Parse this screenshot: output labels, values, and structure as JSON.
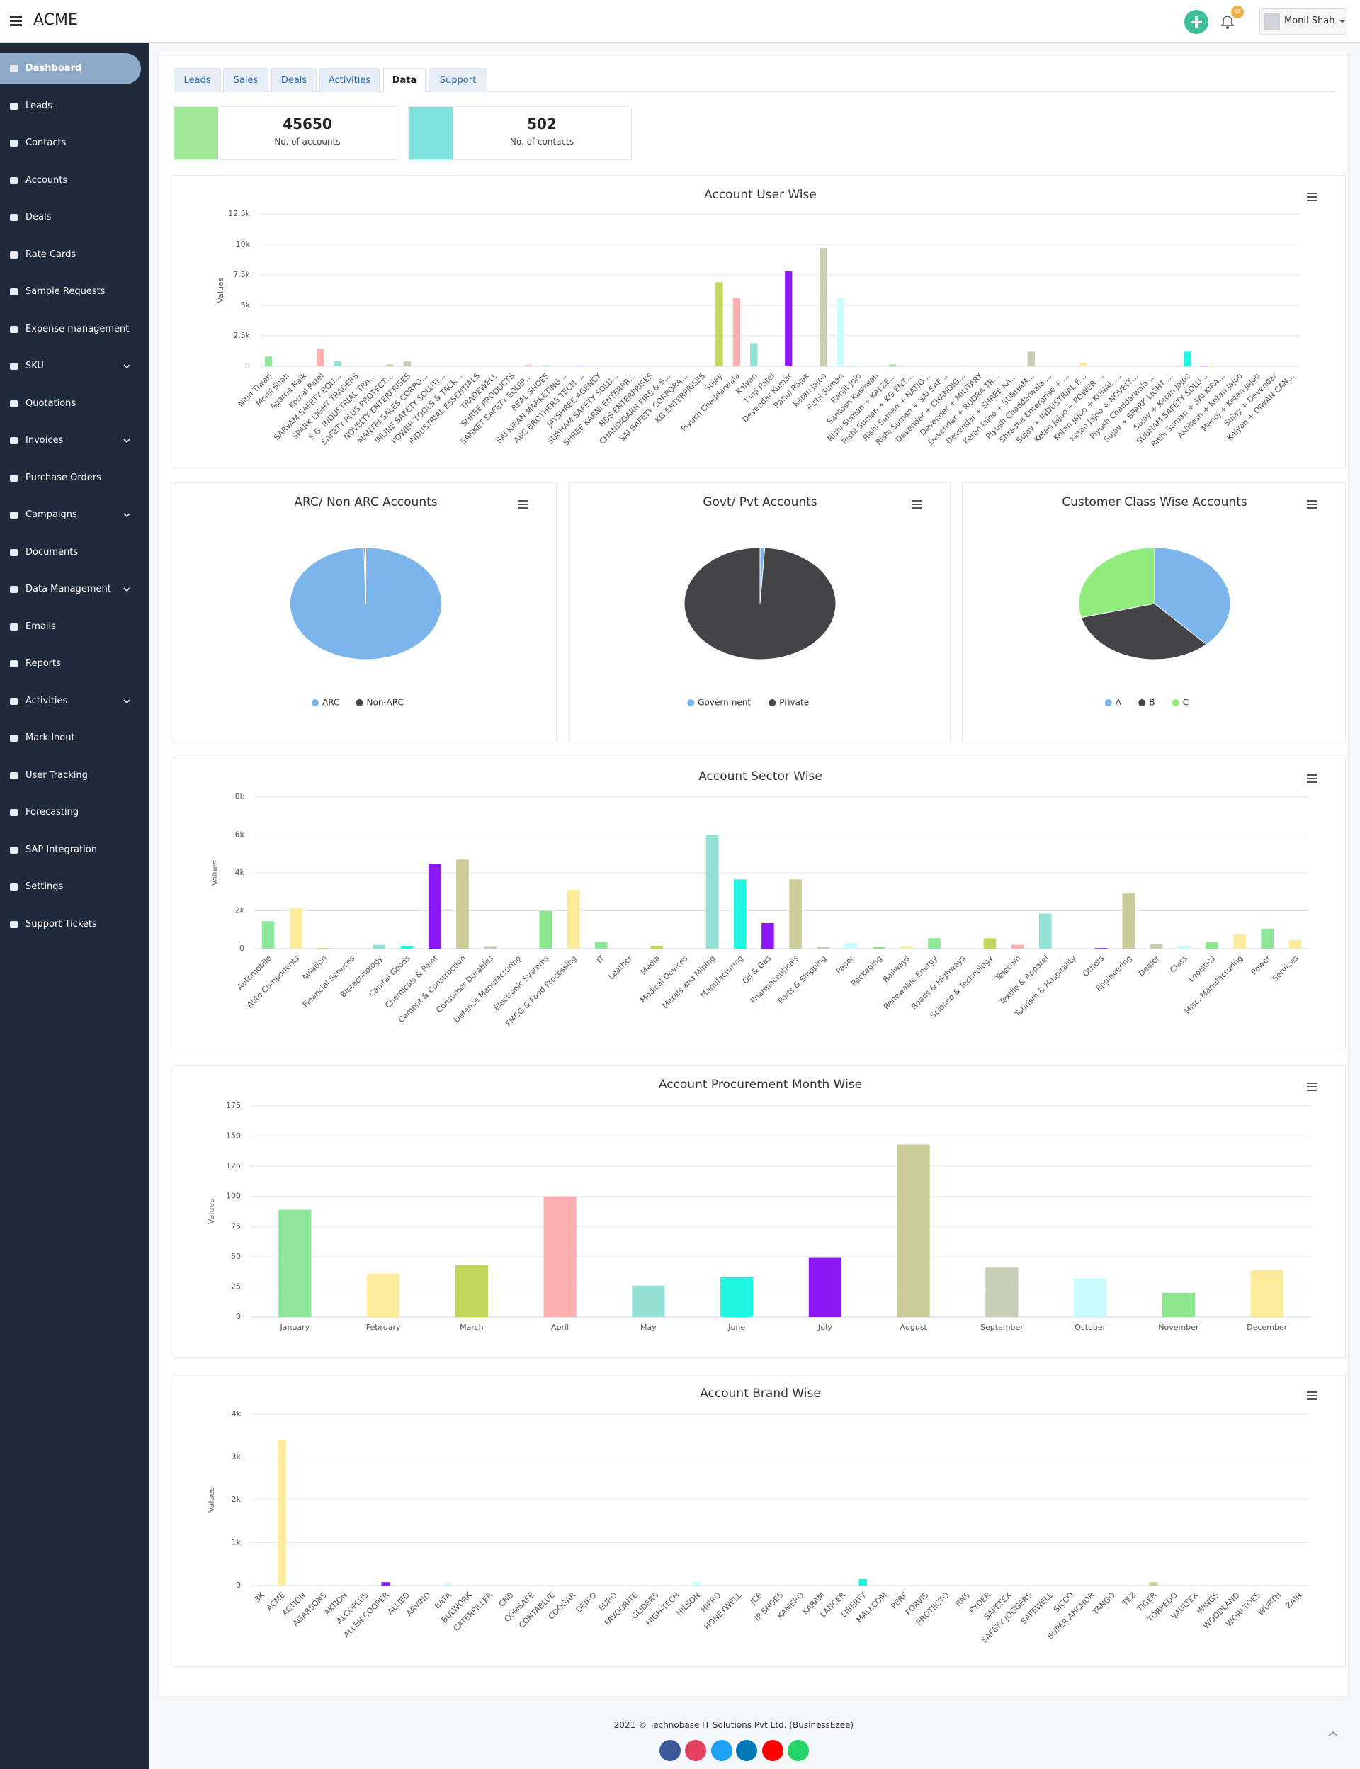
{
  "header": {
    "brand": "ACME",
    "notifications": "0",
    "user": "Monil Shah"
  },
  "sidebar": {
    "items": [
      {
        "label": "Dashboard",
        "active": true
      },
      {
        "label": "Leads"
      },
      {
        "label": "Contacts"
      },
      {
        "label": "Accounts"
      },
      {
        "label": "Deals"
      },
      {
        "label": "Rate Cards"
      },
      {
        "label": "Sample Requests"
      },
      {
        "label": "Expense management"
      },
      {
        "label": "SKU",
        "expandable": true
      },
      {
        "label": "Quotations"
      },
      {
        "label": "Invoices",
        "expandable": true
      },
      {
        "label": "Purchase Orders"
      },
      {
        "label": "Campaigns",
        "expandable": true
      },
      {
        "label": "Documents"
      },
      {
        "label": "Data Management",
        "expandable": true
      },
      {
        "label": "Emails"
      },
      {
        "label": "Reports"
      },
      {
        "label": "Activities",
        "expandable": true
      },
      {
        "label": "Mark Inout"
      },
      {
        "label": "User Tracking"
      },
      {
        "label": "Forecasting"
      },
      {
        "label": "SAP Integration"
      },
      {
        "label": "Settings"
      },
      {
        "label": "Support Tickets"
      }
    ]
  },
  "tabs": {
    "items": [
      "Leads",
      "Sales",
      "Deals",
      "Activities",
      "Data",
      "Support"
    ],
    "active": 4
  },
  "stats": [
    {
      "value": "45650",
      "label": "No. of accounts",
      "color": "#a3e89a"
    },
    {
      "value": "502",
      "label": "No. of contacts",
      "color": "#7fe0dc"
    }
  ],
  "chart_data": [
    {
      "type": "bar",
      "title": "Account User Wise",
      "y_label": "Values",
      "categories": [
        "Nitin Tiwari",
        "Monil Shah",
        "Aparna Naik",
        "Komal Patel",
        "SARVAM SAFETY EQU…",
        "SPARK LIGHT TRADERS",
        "S.G. INDUSTRIAL TRA…",
        "SAFETY PLUS PROTECT…",
        "NOVELTY ENTERPRISES",
        "MANTRI SALES CORPO…",
        "INLINE SAFETY SOLUTI…",
        "POWER TOOLS & TACK…",
        "INDUSTRIAL ESSENTIALS",
        "TRADEWELL",
        "SHREE PRODUCTS",
        "SANKET SAFETY EQUIP…",
        "REAL SHOES",
        "SAI KIRAN MARKETING…",
        "ABC BROTHERS TECH …",
        "JAYSHREE AGENCY",
        "SUBHAM SAFETY SOLU…",
        "SHREE KARNI ENTERPR…",
        "NDS ENTERPRISES",
        "CHANDIGARH FIRE & S…",
        "SAI SAFETY CORPORA…",
        "KG ENTERPRISES",
        "Sujay",
        "Piyush Chaddarwala",
        "Kalyan",
        "Kinji Patel",
        "Devendar Kumar",
        "Rahul Rajak",
        "Ketan Jajoo",
        "Rishi Suman",
        "Ranjit Jojo",
        "Santosh Kushwah",
        "Rishi Suman + KALZE…",
        "Rishi Suman + KG ENT…",
        "Rishi Suman + NATIO…",
        "Rishi Suman + SAI SAF…",
        "Devendar + CHANDIG…",
        "Devendar + MILITARY",
        "Devendar + RUDRA TR…",
        "Devendar + SHREE KA…",
        "Ketan Jajoo + SUBHAM…",
        "Piyush Chaddarwala …",
        "Shradha Enterprise + …",
        "Sujay + INDUSTRIAL E…",
        "Ketan Jajoo + POWER …",
        "Ketan Jajoo + KUNAL …",
        "Ketan Jajoo + NOVELT…",
        "Piyush Chaddarwala …",
        "Sujay + SPARK LIGHT …",
        "Sujay + Ketan Jajoo",
        "SUBHAM SAFETY SOLU…",
        "Rishi Suman + SAI KIRA…",
        "Akhilesh + Ketan Jajoo",
        "Manoj + Ketan Jajoo",
        "Sujay + Devendar",
        "Kalyan + DIWAN CAN…"
      ],
      "values": [
        800,
        0,
        0,
        1400,
        400,
        0,
        0,
        150,
        400,
        0,
        0,
        0,
        0,
        0,
        0,
        100,
        80,
        0,
        30,
        0,
        0,
        0,
        0,
        0,
        0,
        0,
        6900,
        5600,
        1900,
        0,
        7800,
        0,
        9700,
        5600,
        50,
        0,
        150,
        0,
        0,
        0,
        50,
        0,
        0,
        0,
        1200,
        0,
        0,
        300,
        0,
        0,
        0,
        0,
        0,
        1200,
        50,
        0,
        0,
        0,
        0,
        0
      ],
      "colors": [
        "#8ee69a",
        "#fdeb9c",
        "#c2d65a",
        "#feb0b0",
        "#93e1d4",
        "#1ff5e0",
        "#8c18f5",
        "#cbcb98",
        "#c8ceb3",
        "#c9fdfd",
        "#8ee68e",
        "#fdeb9c"
      ],
      "ylim": [
        0,
        12500
      ],
      "yticks": [
        0,
        {
          "value": 2500,
          "label": "2.5k"
        },
        {
          "value": 5000,
          "label": "5k"
        },
        {
          "value": 7500,
          "label": "7.5k"
        },
        {
          "value": 10000,
          "label": "10k"
        },
        {
          "value": 12500,
          "label": "12.5k"
        }
      ],
      "grid": true
    },
    {
      "type": "pie",
      "title": "ARC/ Non ARC Accounts",
      "categories": [
        "ARC",
        "Non-ARC"
      ],
      "values": [
        99.6,
        0.4
      ],
      "colors": [
        "#7cb5ec",
        "#434348"
      ],
      "legend": "bottom"
    },
    {
      "type": "pie",
      "title": "Govt/ Pvt Accounts",
      "categories": [
        "Government",
        "Private"
      ],
      "values": [
        1,
        99
      ],
      "colors": [
        "#7cb5ec",
        "#434348"
      ],
      "legend": "bottom"
    },
    {
      "type": "pie",
      "title": "Customer Class Wise Accounts",
      "categories": [
        "A",
        "B",
        "C"
      ],
      "values": [
        38,
        33,
        29
      ],
      "colors": [
        "#7cb5ec",
        "#434348",
        "#90ed7d"
      ],
      "legend": "bottom"
    },
    {
      "type": "bar",
      "title": "Account Sector Wise",
      "y_label": "Values",
      "categories": [
        "Automobile",
        "Auto Components",
        "Aviation",
        "Financial Services",
        "Biotechnology",
        "Capital Goods",
        "Chemicals & Paint",
        "Cement & Construction",
        "Consumer Durables",
        "Defence Manufacturing",
        "Electronic Systems",
        "FMCG & Food Processing",
        "IT",
        "Leather",
        "Media",
        "Medical Devices",
        "Metals and Mining",
        "Manufacturing",
        "Oil & Gas",
        "Pharmaceuticals",
        "Ports & Shipping",
        "Paper",
        "Packaging",
        "Railways",
        "Renewable Energy",
        "Roads & Highways",
        "Science & Technology",
        "Telecom",
        "Textile & Apparel",
        "Tourism & Hospitality",
        "Others",
        "Engineering",
        "Dealer",
        "Class",
        "Logistics",
        "Misc. Manufacturing",
        "Power",
        "Services"
      ],
      "values": [
        1450,
        2150,
        30,
        0,
        200,
        150,
        4450,
        4700,
        100,
        0,
        2000,
        3100,
        350,
        0,
        150,
        0,
        6000,
        3650,
        1350,
        3650,
        80,
        300,
        80,
        100,
        550,
        0,
        550,
        200,
        1850,
        0,
        30,
        2950,
        250,
        150,
        350,
        750,
        1050,
        450
      ],
      "colors": [
        "#8ee69a",
        "#fdeb9c",
        "#c2d65a",
        "#feb0b0",
        "#93e1d4",
        "#1ff5e0",
        "#8c18f5",
        "#cbcb98",
        "#c8ceb3",
        "#c9fdfd",
        "#8ee68e",
        "#fdeb9c"
      ],
      "ylim": [
        0,
        8000
      ],
      "yticks": [
        0,
        {
          "value": 2000,
          "label": "2k"
        },
        {
          "value": 4000,
          "label": "4k"
        },
        {
          "value": 6000,
          "label": "6k"
        },
        {
          "value": 8000,
          "label": "8k"
        }
      ],
      "grid": true
    },
    {
      "type": "bar",
      "title": "Account Procurement Month Wise",
      "y_label": "Values",
      "categories": [
        "January",
        "February",
        "March",
        "April",
        "May",
        "June",
        "July",
        "August",
        "September",
        "October",
        "November",
        "December"
      ],
      "values": [
        89,
        36,
        43,
        100,
        26,
        33,
        49,
        143,
        41,
        32,
        20,
        39
      ],
      "colors": [
        "#8ee69a",
        "#fdeb9c",
        "#c2d65a",
        "#feb0b0",
        "#93e1d4",
        "#1ff5e0",
        "#8c18f5",
        "#cbcb98",
        "#c8ceb3",
        "#c9fdfd",
        "#8ee68e",
        "#fdeb9c"
      ],
      "ylim": [
        0,
        175
      ],
      "yticks": [
        0,
        25,
        50,
        75,
        100,
        125,
        150,
        175
      ],
      "grid": true
    },
    {
      "type": "bar",
      "title": "Account Brand Wise",
      "y_label": "Values",
      "categories": [
        "3K",
        "ACME",
        "ACTION",
        "AGARSONS",
        "AKTION",
        "ALCOPLUS",
        "ALLEN COOPER",
        "ALLIED",
        "ARVIND",
        "BATA",
        "BULWORK",
        "CATERPILLER",
        "CNB",
        "COMSAFE",
        "CONTABLUE",
        "COOGAR",
        "DEIRO",
        "EURO",
        "FAVOURITE",
        "GLIDERS",
        "HIGH-TECH",
        "HILSON",
        "HIPRO",
        "HONEYWELL",
        "JCB",
        "JP SHOES",
        "KAMERO",
        "KARAM",
        "LANCER",
        "LIBERTY",
        "MALLCOM",
        "PERF",
        "PORVIS",
        "PROTECTO",
        "RNS",
        "RYDER",
        "SAFETEX",
        "SAFETY JOGGERS",
        "SAFEWELL",
        "SICCO",
        "SUPER ANCHOR",
        "TANGO",
        "TEZ",
        "TIGER",
        "TORPEDO",
        "VAULTEX",
        "WINGS",
        "WOODLAND",
        "WORKTOES",
        "WURTH",
        "ZAIN"
      ],
      "values": [
        0,
        3400,
        0,
        0,
        0,
        0,
        80,
        0,
        0,
        50,
        0,
        0,
        0,
        0,
        0,
        0,
        0,
        0,
        0,
        0,
        0,
        80,
        0,
        0,
        0,
        0,
        0,
        0,
        0,
        150,
        0,
        0,
        0,
        0,
        0,
        0,
        0,
        0,
        0,
        0,
        0,
        0,
        0,
        80,
        0,
        0,
        0,
        0,
        0,
        0,
        0
      ],
      "colors": [
        "#8ee69a",
        "#fdeb9c",
        "#c2d65a",
        "#feb0b0",
        "#93e1d4",
        "#1ff5e0",
        "#8c18f5",
        "#cbcb98",
        "#c8ceb3",
        "#c9fdfd",
        "#8ee68e",
        "#fdeb9c"
      ],
      "ylim": [
        0,
        4000
      ],
      "yticks": [
        0,
        {
          "value": 1000,
          "label": "1k"
        },
        {
          "value": 2000,
          "label": "2k"
        },
        {
          "value": 3000,
          "label": "3k"
        },
        {
          "value": 4000,
          "label": "4k"
        }
      ],
      "grid": true
    }
  ],
  "footer": {
    "text": "2021 © Technobase IT Solutions Pvt Ltd. (BusinessEzee)"
  }
}
